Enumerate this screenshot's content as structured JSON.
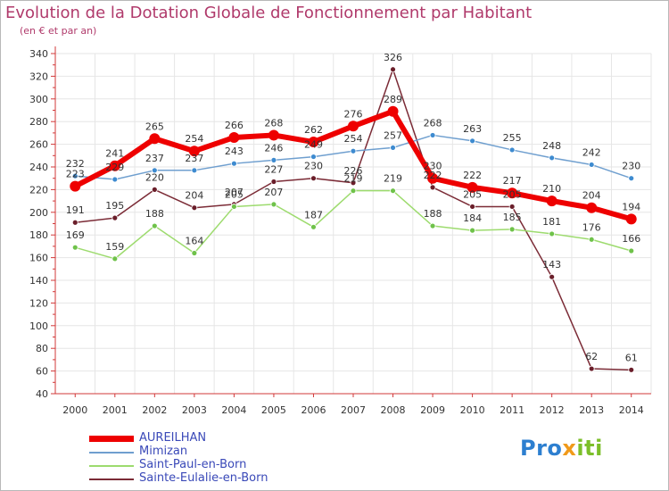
{
  "header": {
    "title": "Evolution de la Dotation Globale de Fonctionnement par Habitant",
    "subtitle": "(en € et par an)"
  },
  "logo": {
    "text": "Proxiti"
  },
  "colors": {
    "AUREILHAN": "#ee0000",
    "Mimizan": "#6f9fcf",
    "Saint-Paul-en-Born": "#9ddb6e",
    "Sainte-Eulalie-en-Born": "#7b2b36",
    "Mimizan_marker": "#3e8bd0",
    "Saint-Paul-en-Born_marker": "#6fc24a",
    "Sainte-Eulalie-en-Born_marker": "#6a1e2a",
    "axis": "#d23838",
    "grid": "#e6e6e6",
    "title": "#b03a6b",
    "legend_text": "#3a49b8"
  },
  "chart_data": {
    "type": "line",
    "title": "Evolution de la Dotation Globale de Fonctionnement par Habitant",
    "subtitle": "(en € et par an)",
    "xlabel": "",
    "ylabel": "",
    "x": [
      2000,
      2001,
      2002,
      2003,
      2004,
      2005,
      2006,
      2007,
      2008,
      2009,
      2010,
      2011,
      2012,
      2013,
      2014
    ],
    "ylim": [
      40,
      340
    ],
    "yticks": [
      40,
      60,
      80,
      100,
      120,
      140,
      160,
      180,
      200,
      220,
      240,
      260,
      280,
      300,
      320,
      340
    ],
    "grid": true,
    "legend_position": "bottom-left",
    "series": [
      {
        "name": "Sainte-Eulalie-en-Born",
        "values": [
          191,
          195,
          220,
          204,
          207,
          227,
          230,
          226,
          326,
          222,
          205,
          205,
          143,
          62,
          61
        ]
      },
      {
        "name": "Saint-Paul-en-Born",
        "values": [
          169,
          159,
          188,
          164,
          205,
          207,
          187,
          219,
          219,
          188,
          184,
          185,
          181,
          176,
          166
        ]
      },
      {
        "name": "Mimizan",
        "values": [
          232,
          229,
          237,
          237,
          243,
          246,
          249,
          254,
          257,
          268,
          263,
          255,
          248,
          242,
          230
        ]
      },
      {
        "name": "AUREILHAN",
        "values": [
          223,
          241,
          265,
          254,
          266,
          268,
          262,
          276,
          289,
          230,
          222,
          217,
          210,
          204,
          194
        ]
      }
    ],
    "legend": [
      "AUREILHAN",
      "Mimizan",
      "Saint-Paul-en-Born",
      "Sainte-Eulalie-en-Born"
    ]
  }
}
